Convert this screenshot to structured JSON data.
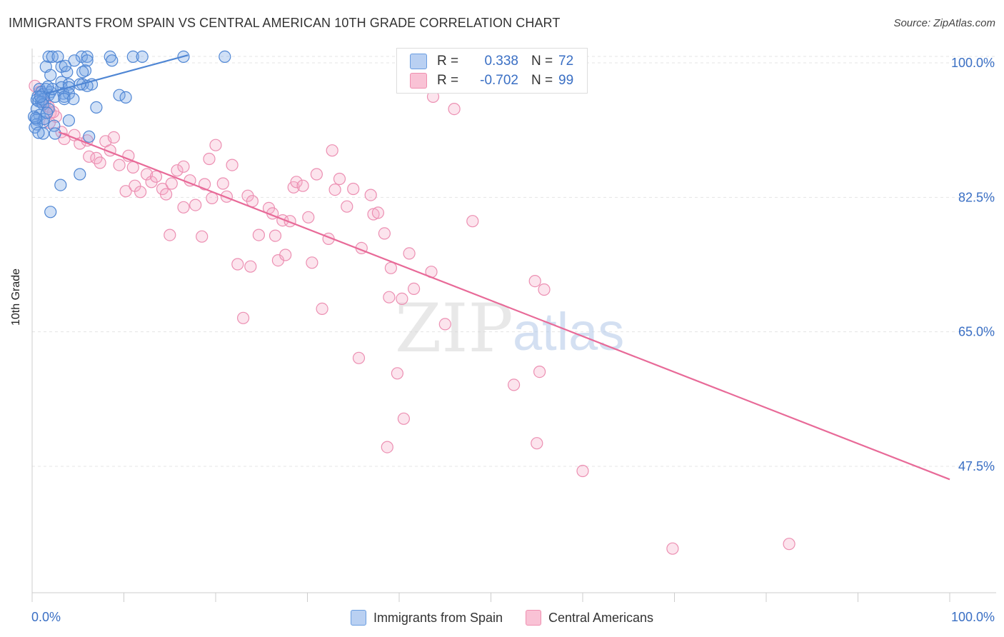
{
  "title": "IMMIGRANTS FROM SPAIN VS CENTRAL AMERICAN 10TH GRADE CORRELATION CHART",
  "source": "Source: ZipAtlas.com",
  "watermark": {
    "zip": "ZIP",
    "atlas": "atlas"
  },
  "legend_top": [
    {
      "r_label": "R =",
      "r_value": "0.338",
      "n_label": "N =",
      "n_value": "72",
      "color": "#6a9de0"
    },
    {
      "r_label": "R =",
      "r_value": "-0.702",
      "n_label": "N =",
      "n_value": "99",
      "color": "#ef8fb0"
    }
  ],
  "legend_bottom": [
    {
      "label": "Immigrants from Spain",
      "color": "#6a9de0"
    },
    {
      "label": "Central Americans",
      "color": "#ef8fb0"
    }
  ],
  "chart_data": {
    "type": "scatter",
    "title": "IMMIGRANTS FROM SPAIN VS CENTRAL AMERICAN 10TH GRADE CORRELATION CHART",
    "xlabel": "",
    "ylabel": "10th Grade",
    "xlim": [
      0,
      100
    ],
    "ylim": [
      33,
      101.5
    ],
    "x_tick_labels": [
      "0.0%",
      "100.0%"
    ],
    "y_ticks": [
      {
        "value": 100.0,
        "label": "100.0%"
      },
      {
        "value": 82.5,
        "label": "82.5%"
      },
      {
        "value": 65.0,
        "label": "65.0%"
      },
      {
        "value": 47.5,
        "label": "47.5%"
      }
    ],
    "grid": true,
    "series": [
      {
        "name": "Immigrants from Spain",
        "color": "#4f86d4",
        "points": [
          [
            1.8,
            100.8
          ],
          [
            2.2,
            100.8
          ],
          [
            2.8,
            100.8
          ],
          [
            5.4,
            100.8
          ],
          [
            6.0,
            100.8
          ],
          [
            8.5,
            100.8
          ],
          [
            11.0,
            100.8
          ],
          [
            12.0,
            100.8
          ],
          [
            16.5,
            100.8
          ],
          [
            21.0,
            100.8
          ],
          [
            4.6,
            100.3
          ],
          [
            6.0,
            100.3
          ],
          [
            8.7,
            100.3
          ],
          [
            1.5,
            99.5
          ],
          [
            3.2,
            99.5
          ],
          [
            5.8,
            99.0
          ],
          [
            3.8,
            98.8
          ],
          [
            5.5,
            98.8
          ],
          [
            2.0,
            98.4
          ],
          [
            3.2,
            97.5
          ],
          [
            4.0,
            97.2
          ],
          [
            6.5,
            97.2
          ],
          [
            5.5,
            97.2
          ],
          [
            6.0,
            97.0
          ],
          [
            3.2,
            96.8
          ],
          [
            4.0,
            96.8
          ],
          [
            1.5,
            96.6
          ],
          [
            0.8,
            96.6
          ],
          [
            1.0,
            96.2
          ],
          [
            2.0,
            96.2
          ],
          [
            1.2,
            95.9
          ],
          [
            3.4,
            96.0
          ],
          [
            4.0,
            96.0
          ],
          [
            1.8,
            95.8
          ],
          [
            0.6,
            95.6
          ],
          [
            1.2,
            95.3
          ],
          [
            2.5,
            95.6
          ],
          [
            3.5,
            95.6
          ],
          [
            3.5,
            95.3
          ],
          [
            4.5,
            95.3
          ],
          [
            9.5,
            95.8
          ],
          [
            10.2,
            95.5
          ],
          [
            0.5,
            95.2
          ],
          [
            0.7,
            95.0
          ],
          [
            1.0,
            94.9
          ],
          [
            1.2,
            94.6
          ],
          [
            7.0,
            94.2
          ],
          [
            0.5,
            94.0
          ],
          [
            1.8,
            94.0
          ],
          [
            0.8,
            93.2
          ],
          [
            0.2,
            93.0
          ],
          [
            0.5,
            92.6
          ],
          [
            1.2,
            92.3
          ],
          [
            1.3,
            92.7
          ],
          [
            4.0,
            92.5
          ],
          [
            0.5,
            92.0
          ],
          [
            0.3,
            91.6
          ],
          [
            2.4,
            91.8
          ],
          [
            1.2,
            90.8
          ],
          [
            0.7,
            90.9
          ],
          [
            2.5,
            90.8
          ],
          [
            6.2,
            90.4
          ],
          [
            5.2,
            85.5
          ],
          [
            3.1,
            84.1
          ],
          [
            2.0,
            80.6
          ],
          [
            0.4,
            92.8
          ],
          [
            1.6,
            93.5
          ],
          [
            2.2,
            96.6
          ],
          [
            0.9,
            95.6
          ],
          [
            1.7,
            96.9
          ],
          [
            5.2,
            97.2
          ],
          [
            3.6,
            99.6
          ]
        ],
        "trend": {
          "x1": 1.5,
          "y1": 96.0,
          "x2": 17.0,
          "y2": 101.0
        }
      },
      {
        "name": "Central Americans",
        "color": "#e86a98",
        "points": [
          [
            0.3,
            97.0
          ],
          [
            0.8,
            96.2
          ],
          [
            1.2,
            95.0
          ],
          [
            1.8,
            94.3
          ],
          [
            2.0,
            93.5
          ],
          [
            2.6,
            93.0
          ],
          [
            1.9,
            92.2
          ],
          [
            3.2,
            91.0
          ],
          [
            3.5,
            90.1
          ],
          [
            4.6,
            90.6
          ],
          [
            5.2,
            89.5
          ],
          [
            6.0,
            89.9
          ],
          [
            6.2,
            87.8
          ],
          [
            7.0,
            87.6
          ],
          [
            7.4,
            87.0
          ],
          [
            8.0,
            89.8
          ],
          [
            8.5,
            88.6
          ],
          [
            8.9,
            90.3
          ],
          [
            9.5,
            86.7
          ],
          [
            10.2,
            83.3
          ],
          [
            10.5,
            87.9
          ],
          [
            11.0,
            86.4
          ],
          [
            11.2,
            84.0
          ],
          [
            11.8,
            83.2
          ],
          [
            12.5,
            85.5
          ],
          [
            13.0,
            84.5
          ],
          [
            13.5,
            85.2
          ],
          [
            14.2,
            83.6
          ],
          [
            14.6,
            82.9
          ],
          [
            15.2,
            84.3
          ],
          [
            15.0,
            77.6
          ],
          [
            15.8,
            86.0
          ],
          [
            16.5,
            86.5
          ],
          [
            16.5,
            81.2
          ],
          [
            17.2,
            84.7
          ],
          [
            17.8,
            81.5
          ],
          [
            18.5,
            77.4
          ],
          [
            18.8,
            84.2
          ],
          [
            19.3,
            87.5
          ],
          [
            19.6,
            82.4
          ],
          [
            20.0,
            89.3
          ],
          [
            20.8,
            84.3
          ],
          [
            21.2,
            82.6
          ],
          [
            21.8,
            86.7
          ],
          [
            22.4,
            73.8
          ],
          [
            23.0,
            66.8
          ],
          [
            23.5,
            82.7
          ],
          [
            23.8,
            73.5
          ],
          [
            24.0,
            82.0
          ],
          [
            24.7,
            77.6
          ],
          [
            25.8,
            81.1
          ],
          [
            26.2,
            80.4
          ],
          [
            26.5,
            77.5
          ],
          [
            26.8,
            74.3
          ],
          [
            27.3,
            79.5
          ],
          [
            27.6,
            75.0
          ],
          [
            28.1,
            79.4
          ],
          [
            28.5,
            83.8
          ],
          [
            28.8,
            84.5
          ],
          [
            29.5,
            84.0
          ],
          [
            30.1,
            79.9
          ],
          [
            30.5,
            74.0
          ],
          [
            31.0,
            85.5
          ],
          [
            31.6,
            68.0
          ],
          [
            32.3,
            77.1
          ],
          [
            32.7,
            88.6
          ],
          [
            33.0,
            83.5
          ],
          [
            33.5,
            84.9
          ],
          [
            34.3,
            81.3
          ],
          [
            35.0,
            83.6
          ],
          [
            35.6,
            61.6
          ],
          [
            35.9,
            75.9
          ],
          [
            36.9,
            82.8
          ],
          [
            37.2,
            80.3
          ],
          [
            37.7,
            80.5
          ],
          [
            38.4,
            77.8
          ],
          [
            38.7,
            50.0
          ],
          [
            38.9,
            69.5
          ],
          [
            39.1,
            73.3
          ],
          [
            39.8,
            59.6
          ],
          [
            40.3,
            69.3
          ],
          [
            40.5,
            53.7
          ],
          [
            41.1,
            75.2
          ],
          [
            41.6,
            70.6
          ],
          [
            43.5,
            72.8
          ],
          [
            43.7,
            95.6
          ],
          [
            45.0,
            66.0
          ],
          [
            46.0,
            94.0
          ],
          [
            48.0,
            79.4
          ],
          [
            52.5,
            58.1
          ],
          [
            54.8,
            71.6
          ],
          [
            55.0,
            50.5
          ],
          [
            55.3,
            59.8
          ],
          [
            55.8,
            70.5
          ],
          [
            60.0,
            46.9
          ],
          [
            69.8,
            36.8
          ],
          [
            82.5,
            37.4
          ],
          [
            1.4,
            94.8
          ],
          [
            2.3,
            93.6
          ]
        ],
        "trend": {
          "x1": 2.9,
          "y1": 91.0,
          "x2": 100.0,
          "y2": 45.8
        }
      }
    ]
  }
}
